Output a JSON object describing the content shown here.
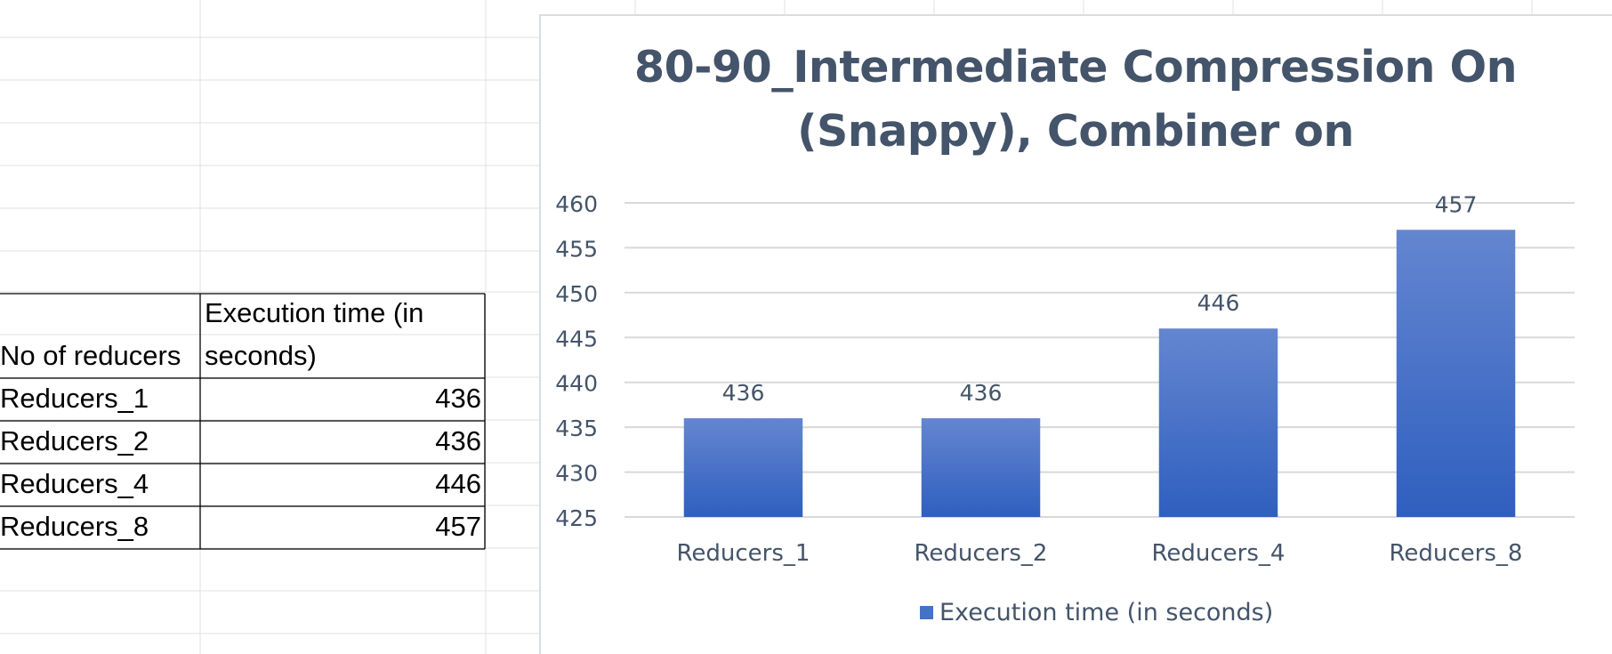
{
  "sheet_table": {
    "headers": [
      "No of reducers",
      "Execution time (in",
      "seconds)"
    ],
    "rows": [
      {
        "label": "Reducers_1",
        "value": "436"
      },
      {
        "label": "Reducers_2",
        "value": "436"
      },
      {
        "label": "Reducers_4",
        "value": "446"
      },
      {
        "label": "Reducers_8",
        "value": "457"
      }
    ]
  },
  "chart_data": {
    "type": "bar",
    "title_lines": [
      "80-90_Intermediate Compression On",
      "(Snappy), Combiner on"
    ],
    "categories": [
      "Reducers_1",
      "Reducers_2",
      "Reducers_4",
      "Reducers_8"
    ],
    "series": [
      {
        "name": "Execution time (in seconds)",
        "values": [
          436,
          436,
          446,
          457
        ]
      }
    ],
    "ylim": [
      425,
      460
    ],
    "yticks": [
      425,
      430,
      435,
      440,
      445,
      450,
      455,
      460
    ],
    "xlabel": "",
    "ylabel": "",
    "grid": true,
    "legend": "bottom",
    "data_labels": true,
    "colors": {
      "bar": "#4472c4",
      "text": "#44546a",
      "gridline": "#d9d9d9"
    }
  }
}
